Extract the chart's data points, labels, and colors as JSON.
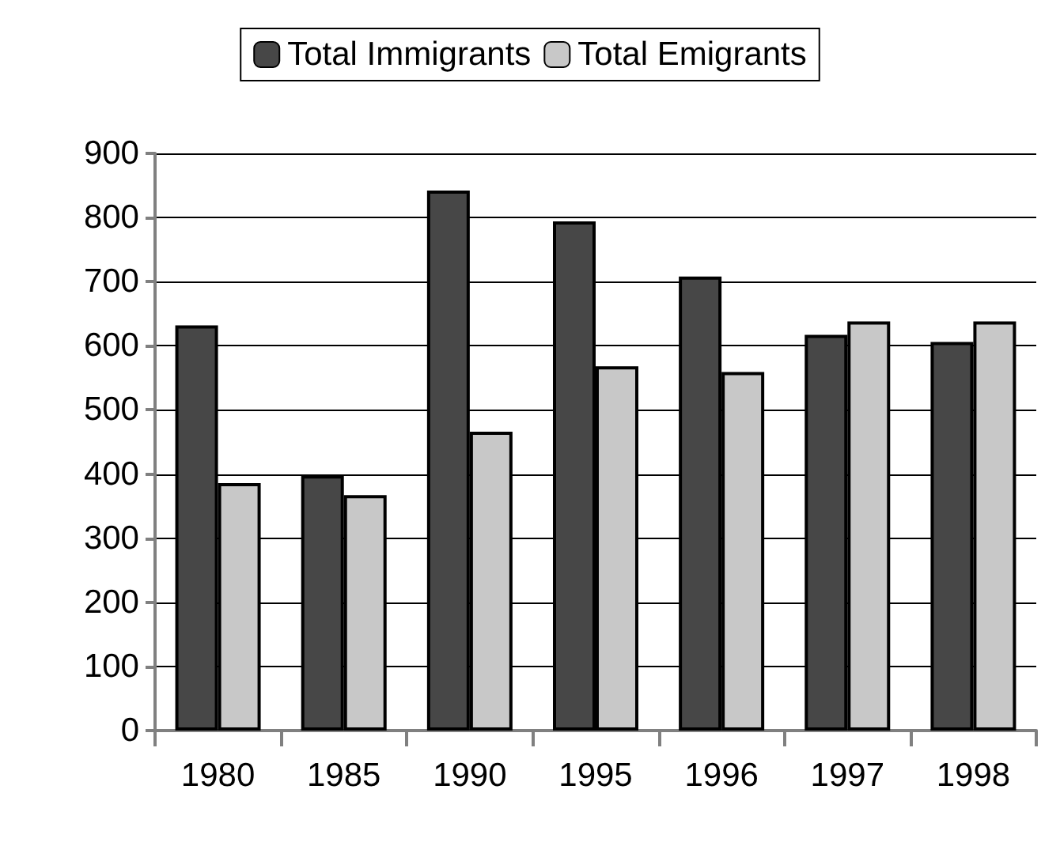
{
  "chart_data": {
    "type": "bar",
    "categories": [
      "1980",
      "1985",
      "1990",
      "1995",
      "1996",
      "1997",
      "1998"
    ],
    "series": [
      {
        "name": "Total Immigrants",
        "color": "#474747",
        "values": [
          632,
          398,
          842,
          794,
          708,
          617,
          606
        ]
      },
      {
        "name": "Total Emigrants",
        "color": "#c8c8c8",
        "values": [
          386,
          367,
          466,
          568,
          559,
          638,
          638
        ]
      }
    ],
    "ylim": [
      0,
      900
    ],
    "yticks": [
      0,
      100,
      200,
      300,
      400,
      500,
      600,
      700,
      800,
      900
    ],
    "grid": "y",
    "legend": "top"
  }
}
